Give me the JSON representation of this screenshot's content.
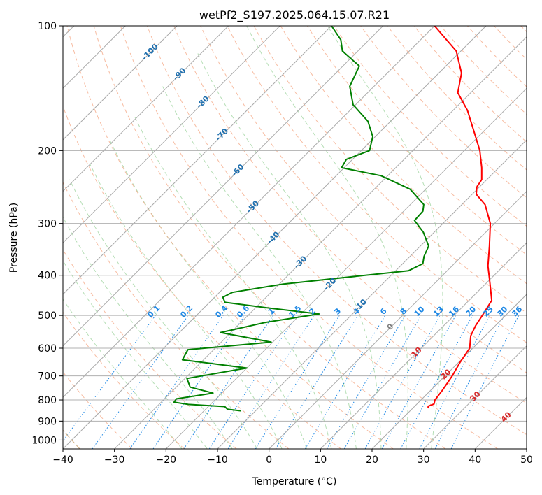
{
  "chart_data": {
    "type": "line",
    "chart_kind": "skew-t log-p diagram",
    "title": "wetPf2_S197.2025.064.15.07.R21",
    "xlabel": "Temperature (°C)",
    "ylabel": "Pressure (hPa)",
    "xlim": [
      -40,
      50
    ],
    "ylim": [
      1050,
      100
    ],
    "y_scale": "log",
    "grid": true,
    "x_ticks": [
      -40,
      -30,
      -20,
      -10,
      0,
      10,
      20,
      30,
      40,
      50
    ],
    "x_tick_labels": [
      "−40",
      "−30",
      "−20",
      "−10",
      "0",
      "10",
      "20",
      "30",
      "40",
      "50"
    ],
    "y_ticks": [
      100,
      200,
      300,
      400,
      500,
      600,
      700,
      800,
      900,
      1000
    ],
    "y_tick_labels": [
      "100",
      "200",
      "300",
      "400",
      "500",
      "600",
      "700",
      "800",
      "900",
      "1000"
    ],
    "series": [
      {
        "role": "temperature",
        "color": "#ff0000",
        "points": [
          {
            "p": 838,
            "t": 23.0
          },
          {
            "p": 828,
            "t": 22.6
          },
          {
            "p": 818,
            "t": 23.3
          },
          {
            "p": 800,
            "t": 22.7
          },
          {
            "p": 760,
            "t": 22.3
          },
          {
            "p": 700,
            "t": 21.4
          },
          {
            "p": 650,
            "t": 20.3
          },
          {
            "p": 600,
            "t": 19.4
          },
          {
            "p": 560,
            "t": 17.2
          },
          {
            "p": 530,
            "t": 16.2
          },
          {
            "p": 500,
            "t": 15.5
          },
          {
            "p": 460,
            "t": 14.4
          },
          {
            "p": 420,
            "t": 10.9
          },
          {
            "p": 380,
            "t": 7.0
          },
          {
            "p": 340,
            "t": 3.4
          },
          {
            "p": 300,
            "t": -0.8
          },
          {
            "p": 270,
            "t": -5.5
          },
          {
            "p": 255,
            "t": -9.2
          },
          {
            "p": 245,
            "t": -10.5
          },
          {
            "p": 235,
            "t": -11.0
          },
          {
            "p": 220,
            "t": -13.3
          },
          {
            "p": 200,
            "t": -17.0
          },
          {
            "p": 180,
            "t": -21.8
          },
          {
            "p": 160,
            "t": -27.2
          },
          {
            "p": 145,
            "t": -32.5
          },
          {
            "p": 130,
            "t": -35.6
          },
          {
            "p": 115,
            "t": -40.9
          },
          {
            "p": 100,
            "t": -50.0
          }
        ]
      },
      {
        "role": "dewpoint",
        "color": "#008000",
        "points": [
          {
            "p": 850,
            "t": -12.8
          },
          {
            "p": 842,
            "t": -15.8
          },
          {
            "p": 830,
            "t": -16.8
          },
          {
            "p": 820,
            "t": -24.3
          },
          {
            "p": 810,
            "t": -27.5
          },
          {
            "p": 795,
            "t": -27.7
          },
          {
            "p": 770,
            "t": -21.7
          },
          {
            "p": 745,
            "t": -27.3
          },
          {
            "p": 710,
            "t": -29.6
          },
          {
            "p": 670,
            "t": -20.0
          },
          {
            "p": 640,
            "t": -34.1
          },
          {
            "p": 605,
            "t": -35.0
          },
          {
            "p": 580,
            "t": -20.3
          },
          {
            "p": 550,
            "t": -32.0
          },
          {
            "p": 520,
            "t": -25.3
          },
          {
            "p": 496,
            "t": -16.5
          },
          {
            "p": 480,
            "t": -27.3
          },
          {
            "p": 465,
            "t": -37.0
          },
          {
            "p": 452,
            "t": -38.4
          },
          {
            "p": 440,
            "t": -37.5
          },
          {
            "p": 420,
            "t": -29.2
          },
          {
            "p": 390,
            "t": -7.5
          },
          {
            "p": 375,
            "t": -6.1
          },
          {
            "p": 360,
            "t": -7.3
          },
          {
            "p": 340,
            "t": -8.4
          },
          {
            "p": 315,
            "t": -12.1
          },
          {
            "p": 295,
            "t": -16.1
          },
          {
            "p": 280,
            "t": -16.3
          },
          {
            "p": 270,
            "t": -17.4
          },
          {
            "p": 248,
            "t": -23.0
          },
          {
            "p": 230,
            "t": -31.3
          },
          {
            "p": 220,
            "t": -40.5
          },
          {
            "p": 210,
            "t": -41.2
          },
          {
            "p": 200,
            "t": -38.4
          },
          {
            "p": 185,
            "t": -40.5
          },
          {
            "p": 170,
            "t": -44.4
          },
          {
            "p": 155,
            "t": -50.5
          },
          {
            "p": 140,
            "t": -54.7
          },
          {
            "p": 125,
            "t": -56.8
          },
          {
            "p": 115,
            "t": -63.0
          },
          {
            "p": 108,
            "t": -65.5
          },
          {
            "p": 100,
            "t": -70.0
          }
        ]
      }
    ],
    "dry_adiabats_theta_c": [
      -30,
      -20,
      -10,
      0,
      10,
      20,
      30,
      40,
      50,
      60,
      70,
      80,
      90,
      100,
      110,
      120,
      130,
      140,
      150,
      160,
      170,
      180,
      190,
      200,
      210,
      220
    ],
    "moist_adiabats_start_t_c": [
      -20,
      -15,
      -10,
      -5,
      0,
      5,
      10,
      15,
      20,
      25,
      30
    ],
    "mixing_ratio_lines": {
      "color": "#1e88e5",
      "values": [
        0.1,
        0.2,
        0.4,
        0.6,
        1,
        1.5,
        2,
        3,
        4,
        6,
        8,
        10,
        13,
        16,
        20,
        25,
        30,
        36
      ],
      "labels": [
        "0.1",
        "0.2",
        "0.4",
        "0.6",
        "1",
        "1.5",
        "2",
        "3",
        "4",
        "6",
        "8",
        "10",
        "13",
        "16",
        "20",
        "25",
        "30",
        "36"
      ],
      "label_pressure": 500
    },
    "isotherm_labels": {
      "blue_color": "#1f6fae",
      "blue": [
        {
          "value": -100,
          "text": "-100",
          "p": 115
        },
        {
          "value": -90,
          "text": "-90",
          "p": 130
        },
        {
          "value": -80,
          "text": "-80",
          "p": 152
        },
        {
          "value": -70,
          "text": "-70",
          "p": 182
        },
        {
          "value": -60,
          "text": "-60",
          "p": 222
        },
        {
          "value": -50,
          "text": "-50",
          "p": 272
        },
        {
          "value": -40,
          "text": "-40",
          "p": 323
        },
        {
          "value": -30,
          "text": "-30",
          "p": 370
        },
        {
          "value": -20,
          "text": "-20",
          "p": 418
        },
        {
          "value": -10,
          "text": "-10",
          "p": 470
        }
      ],
      "zero": {
        "value": 0,
        "text": "0",
        "color": "#7f7f7f",
        "p": 530
      },
      "red_color": "#d62728",
      "red": [
        {
          "value": 10,
          "text": "10",
          "p": 610
        },
        {
          "value": 20,
          "text": "20",
          "p": 690
        },
        {
          "value": 30,
          "text": "30",
          "p": 780
        },
        {
          "value": 40,
          "text": "40",
          "p": 875
        }
      ]
    }
  }
}
